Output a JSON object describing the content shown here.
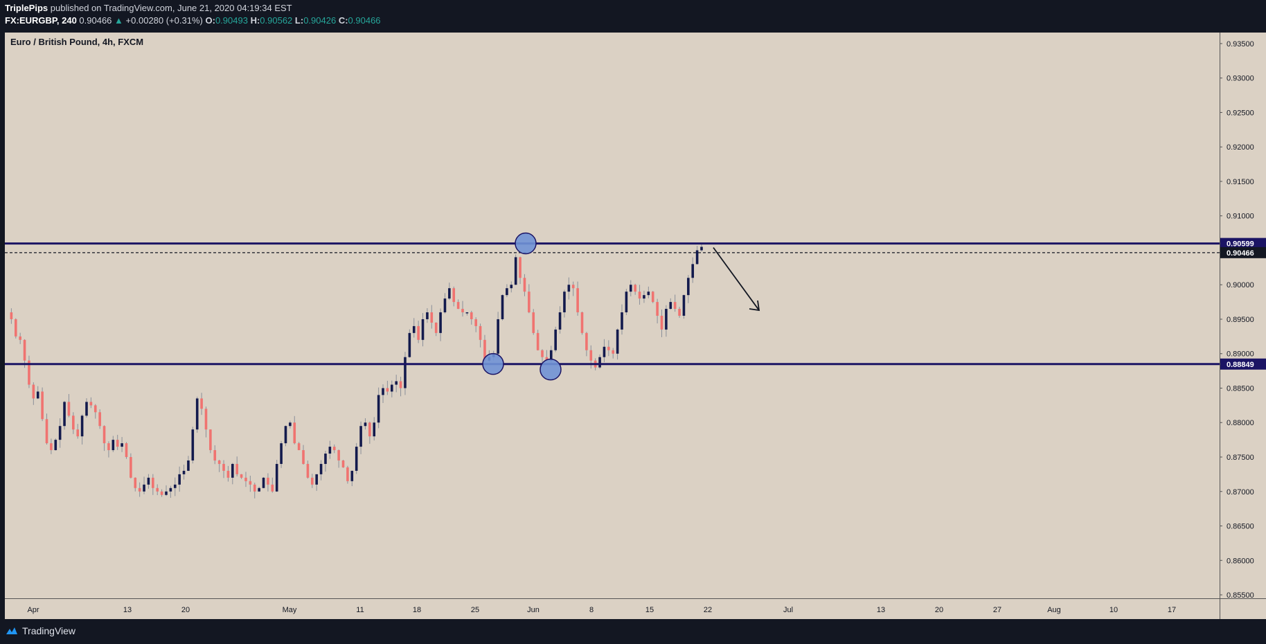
{
  "header": {
    "author": "TriplePips",
    "published": "published on TradingView.com, June 21, 2020 04:19:34 EST",
    "symbol": "FX:EURGBP, 240",
    "last": "0.90466",
    "change": "+0.00280 (+0.31%)",
    "o_label": "O:",
    "o_value": "0.90493",
    "h_label": "H:",
    "h_value": "0.90562",
    "l_label": "L:",
    "l_value": "0.90426",
    "c_label": "C:",
    "c_value": "0.90466"
  },
  "footer": {
    "brand": "TradingView"
  },
  "colors": {
    "bull": "#131a4d",
    "bear": "#f07370",
    "level": "#1b1464",
    "circle": "#7092d6",
    "bg": "#dbd1c4"
  },
  "chart_data": {
    "type": "candlestick",
    "title": "Euro / British Pound, 4h, FXCM",
    "ylim": [
      0.8545,
      0.9366
    ],
    "y_ticks": [
      "0.93500",
      "0.93000",
      "0.92500",
      "0.92000",
      "0.91500",
      "0.91000",
      "0.90500",
      "0.90000",
      "0.89500",
      "0.89000",
      "0.88500",
      "0.88000",
      "0.87500",
      "0.87000",
      "0.86500",
      "0.86000",
      "0.85500"
    ],
    "x_labels": [
      "Apr",
      "13",
      "20",
      "May",
      "11",
      "18",
      "25",
      "Jun",
      "8",
      "15",
      "22",
      "Jul",
      "13",
      "20",
      "27",
      "Aug",
      "10",
      "17"
    ],
    "levels": [
      {
        "value": 0.90599,
        "label": "0.90599",
        "style": "solid"
      },
      {
        "value": 0.88849,
        "label": "0.88849",
        "style": "solid"
      },
      {
        "value": 0.90466,
        "label": "0.90466",
        "style": "dashed"
      }
    ],
    "close_path": [
      0.896,
      0.895,
      0.8925,
      0.892,
      0.889,
      0.8855,
      0.8835,
      0.8845,
      0.8805,
      0.877,
      0.876,
      0.8775,
      0.8795,
      0.883,
      0.881,
      0.879,
      0.878,
      0.881,
      0.883,
      0.8825,
      0.8815,
      0.8795,
      0.877,
      0.876,
      0.8775,
      0.8765,
      0.877,
      0.875,
      0.872,
      0.8705,
      0.87,
      0.871,
      0.872,
      0.8705,
      0.87,
      0.8695,
      0.87,
      0.8705,
      0.871,
      0.8725,
      0.873,
      0.8745,
      0.879,
      0.8835,
      0.882,
      0.879,
      0.876,
      0.8745,
      0.874,
      0.873,
      0.872,
      0.874,
      0.8725,
      0.872,
      0.8715,
      0.871,
      0.87,
      0.8705,
      0.872,
      0.871,
      0.87,
      0.874,
      0.877,
      0.8795,
      0.88,
      0.877,
      0.876,
      0.874,
      0.872,
      0.871,
      0.8725,
      0.874,
      0.8755,
      0.8765,
      0.876,
      0.8745,
      0.8735,
      0.8715,
      0.873,
      0.8765,
      0.8795,
      0.88,
      0.878,
      0.88,
      0.884,
      0.885,
      0.8845,
      0.8855,
      0.886,
      0.885,
      0.8895,
      0.893,
      0.894,
      0.892,
      0.895,
      0.896,
      0.8945,
      0.893,
      0.896,
      0.898,
      0.8995,
      0.8975,
      0.8965,
      0.896,
      0.896,
      0.895,
      0.894,
      0.892,
      0.889,
      0.8895,
      0.89,
      0.895,
      0.8985,
      0.8995,
      0.9,
      0.904,
      0.901,
      0.899,
      0.896,
      0.893,
      0.8905,
      0.8895,
      0.889,
      0.8905,
      0.8935,
      0.896,
      0.899,
      0.9,
      0.8995,
      0.896,
      0.893,
      0.8905,
      0.889,
      0.888,
      0.8895,
      0.891,
      0.8905,
      0.89,
      0.8935,
      0.896,
      0.899,
      0.9,
      0.899,
      0.898,
      0.8985,
      0.899,
      0.8975,
      0.8955,
      0.8935,
      0.8965,
      0.8975,
      0.8965,
      0.8955,
      0.8985,
      0.901,
      0.903,
      0.905,
      0.9055
    ]
  }
}
